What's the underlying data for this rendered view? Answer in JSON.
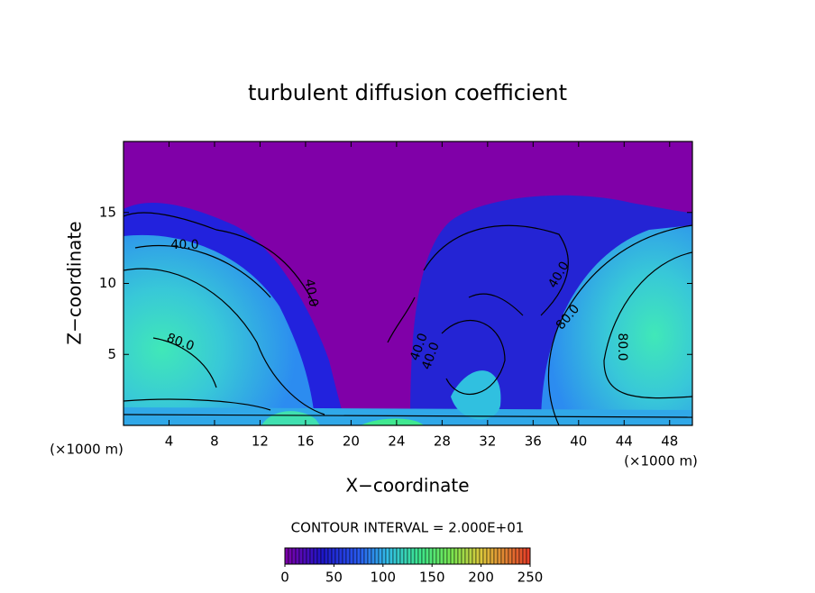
{
  "chart_data": {
    "type": "contour",
    "title": "turbulent diffusion coefficient",
    "xlabel": "X−coordinate",
    "ylabel": "Z−coordinate",
    "unit_label": "(×1000 m)",
    "xlim": [
      0,
      50
    ],
    "xticks": [
      4,
      8,
      12,
      16,
      20,
      24,
      28,
      32,
      36,
      40,
      44,
      48
    ],
    "ylim": [
      0,
      20
    ],
    "yticks": [
      5,
      10,
      15
    ],
    "contour_interval_label": "CONTOUR INTERVAL = 2.000E+01",
    "contour_labels": [
      "40.0",
      "80.0",
      "40.0",
      "40.0",
      "40.0",
      "40.0",
      "80.0",
      "80.0"
    ],
    "colorbar": {
      "lim": [
        0,
        250
      ],
      "ticks": [
        0,
        50,
        100,
        150,
        200,
        250
      ]
    }
  }
}
